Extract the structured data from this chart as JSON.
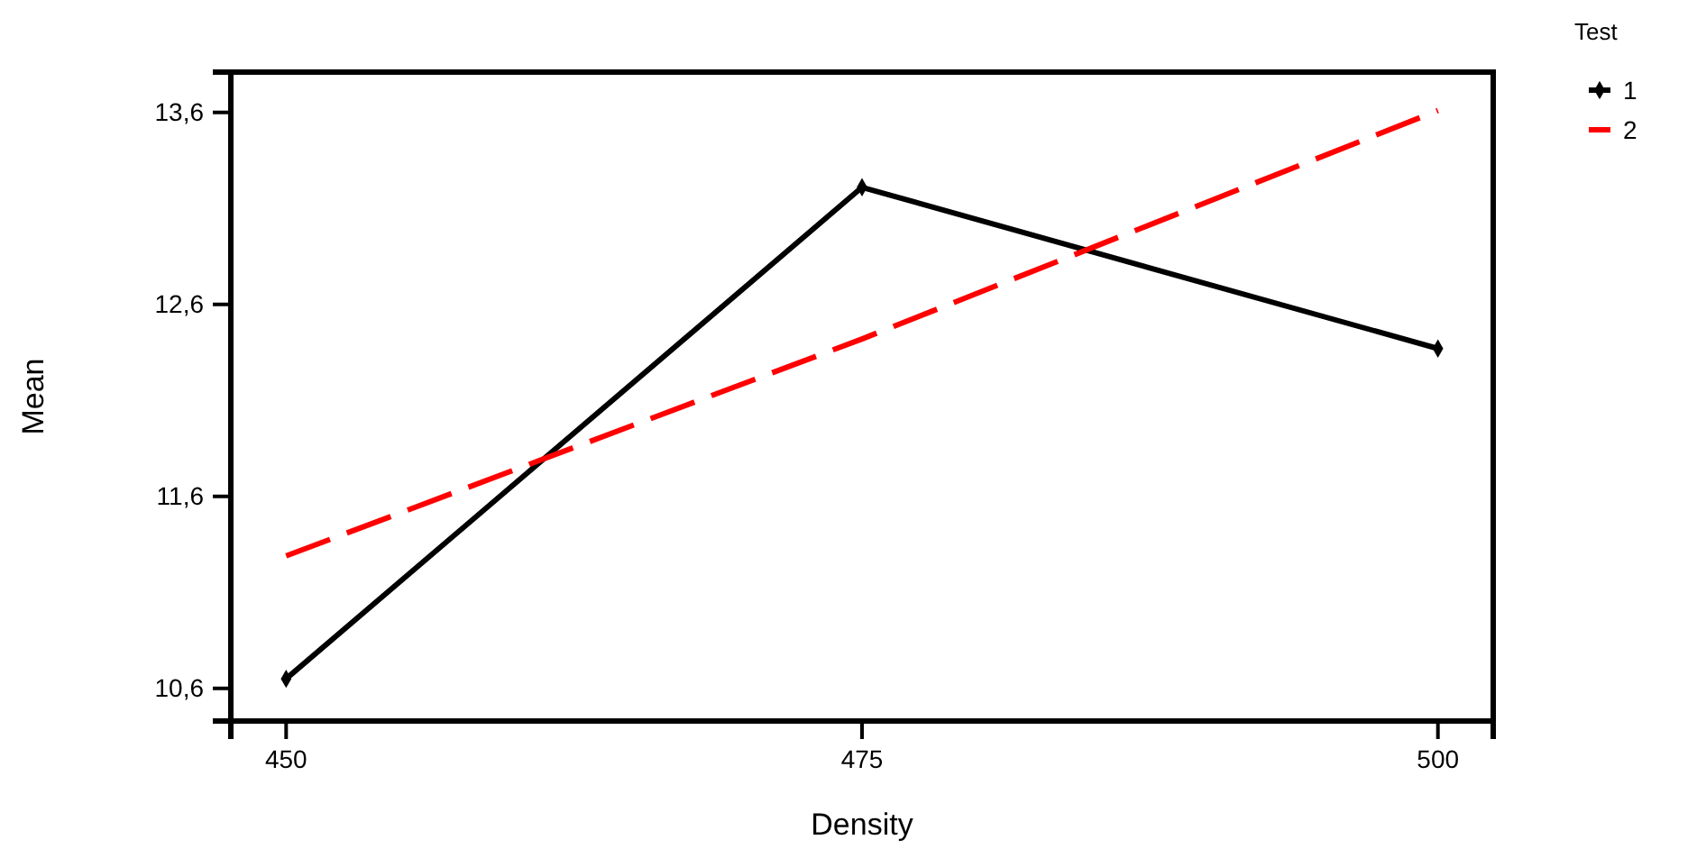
{
  "chart_data": {
    "type": "line",
    "xlabel": "Density",
    "ylabel": "Mean",
    "legend_title": "Test",
    "legend": "top right",
    "x": [
      450,
      475,
      500
    ],
    "xlim": [
      447.6,
      502.4
    ],
    "xticks": [
      450,
      475,
      500
    ],
    "ylim": [
      10.43,
      13.81
    ],
    "yticks": [
      {
        "value": 10.6,
        "label": "10,6"
      },
      {
        "value": 11.6,
        "label": "11,6"
      },
      {
        "value": 12.6,
        "label": "12,6"
      },
      {
        "value": 13.6,
        "label": "13,6"
      }
    ],
    "grid": false,
    "series": [
      {
        "name": "1",
        "color": "#000000",
        "values": [
          10.65,
          13.21,
          12.37
        ],
        "marker": "diamond",
        "line_style": "solid"
      },
      {
        "name": "2",
        "color": "#ff0000",
        "values": [
          11.29,
          12.42,
          13.61
        ],
        "marker": "none",
        "line_style": "dashed"
      }
    ]
  }
}
